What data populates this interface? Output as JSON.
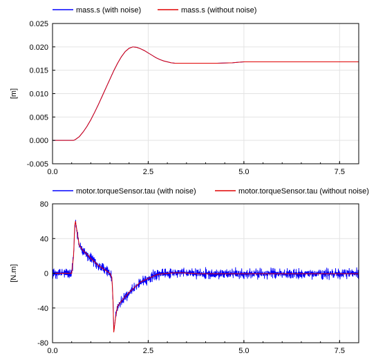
{
  "chart_data": [
    {
      "type": "line",
      "title": "",
      "xlabel": "",
      "ylabel": "[m]",
      "xlim": [
        0,
        8
      ],
      "ylim": [
        -0.005,
        0.025
      ],
      "xticks": [
        0.0,
        2.5,
        5.0,
        7.5
      ],
      "xtick_labels": [
        "0.0",
        "2.5",
        "5.0",
        "7.5"
      ],
      "yticks": [
        0.025,
        0.02,
        0.015,
        0.01,
        0.005,
        0.0,
        -0.005
      ],
      "ytick_labels": [
        "0.025",
        "0.020",
        "0.015",
        "0.010",
        "0.005",
        "0.000",
        "-0.005"
      ],
      "grid": true,
      "legend_placement": "top",
      "series": [
        {
          "name": "mass.s (with noise)",
          "color": "#0000ff",
          "x": [
            0,
            0.3,
            0.55,
            0.6,
            0.7,
            0.8,
            0.9,
            1.0,
            1.1,
            1.2,
            1.3,
            1.4,
            1.5,
            1.6,
            1.7,
            1.8,
            1.9,
            2.0,
            2.1,
            2.2,
            2.3,
            2.4,
            2.5,
            2.6,
            2.7,
            2.8,
            2.9,
            3.0,
            3.1,
            3.2,
            3.3,
            3.4,
            3.5,
            3.7,
            4.0,
            4.3,
            4.7,
            4.85,
            5.0,
            5.5,
            6.0,
            6.5,
            7.0,
            7.5,
            8.0
          ],
          "y": [
            0.0,
            0.0,
            0.0,
            0.0002,
            0.0008,
            0.0018,
            0.003,
            0.0044,
            0.006,
            0.0077,
            0.0095,
            0.0113,
            0.0131,
            0.0149,
            0.0165,
            0.0179,
            0.019,
            0.0197,
            0.02,
            0.0199,
            0.0196,
            0.0192,
            0.0187,
            0.0182,
            0.0177,
            0.0173,
            0.017,
            0.0168,
            0.0166,
            0.0165,
            0.0165,
            0.0165,
            0.0165,
            0.0165,
            0.0165,
            0.0165,
            0.0166,
            0.0167,
            0.0168,
            0.0168,
            0.0168,
            0.0168,
            0.0168,
            0.0168,
            0.0168
          ]
        },
        {
          "name": "mass.s (without noise)",
          "color": "#e00000",
          "x": [
            0,
            0.3,
            0.55,
            0.6,
            0.7,
            0.8,
            0.9,
            1.0,
            1.1,
            1.2,
            1.3,
            1.4,
            1.5,
            1.6,
            1.7,
            1.8,
            1.9,
            2.0,
            2.1,
            2.2,
            2.3,
            2.4,
            2.5,
            2.6,
            2.7,
            2.8,
            2.9,
            3.0,
            3.1,
            3.2,
            3.3,
            3.4,
            3.5,
            3.7,
            4.0,
            4.3,
            4.7,
            4.85,
            5.0,
            5.5,
            6.0,
            6.5,
            7.0,
            7.5,
            8.0
          ],
          "y": [
            0.0,
            0.0,
            0.0,
            0.0002,
            0.0008,
            0.0018,
            0.003,
            0.0044,
            0.006,
            0.0077,
            0.0095,
            0.0113,
            0.0131,
            0.0149,
            0.0165,
            0.0179,
            0.019,
            0.0197,
            0.02,
            0.0199,
            0.0196,
            0.0192,
            0.0187,
            0.0182,
            0.0177,
            0.0173,
            0.017,
            0.0168,
            0.0166,
            0.0165,
            0.0165,
            0.0165,
            0.0165,
            0.0165,
            0.0165,
            0.0165,
            0.0166,
            0.0167,
            0.0168,
            0.0168,
            0.0168,
            0.0168,
            0.0168,
            0.0168,
            0.0168
          ]
        }
      ]
    },
    {
      "type": "line",
      "title": "",
      "xlabel": "",
      "ylabel": "[N.m]",
      "xlim": [
        0,
        8
      ],
      "ylim": [
        -80,
        80
      ],
      "xticks": [
        0.0,
        2.5,
        5.0,
        7.5
      ],
      "xtick_labels": [
        "0.0",
        "2.5",
        "5.0",
        "7.5"
      ],
      "yticks": [
        80,
        40,
        0,
        -40,
        -80
      ],
      "ytick_labels": [
        "80",
        "40",
        "0",
        "-40",
        "-80"
      ],
      "grid": true,
      "legend_placement": "top",
      "noise_amplitude": 8,
      "series": [
        {
          "name": "motor.torqueSensor.tau (with noise)",
          "color": "#0000ff",
          "x": [
            0,
            0.5,
            0.55,
            0.58,
            0.6,
            0.65,
            0.7,
            0.8,
            0.9,
            1.0,
            1.1,
            1.2,
            1.3,
            1.4,
            1.5,
            1.55,
            1.58,
            1.6,
            1.65,
            1.7,
            1.8,
            1.9,
            2.0,
            2.1,
            2.2,
            2.3,
            2.4,
            2.5,
            2.6,
            2.7,
            2.8,
            2.9,
            3.0,
            3.2,
            3.4,
            3.6,
            3.8,
            4.0,
            4.5,
            5.0,
            5.5,
            6.0,
            6.5,
            7.0,
            7.5,
            8.0
          ],
          "y": [
            0,
            0,
            20,
            55,
            60,
            45,
            32,
            26,
            22,
            17,
            13,
            9,
            6,
            3,
            0,
            -5,
            -30,
            -68,
            -50,
            -38,
            -32,
            -27,
            -22,
            -18,
            -14,
            -10,
            -8,
            -6,
            -4,
            -2,
            -1,
            -0.5,
            0,
            0.5,
            0.5,
            0,
            -0.5,
            -0.5,
            -0.5,
            -0.5,
            -0.5,
            -0.5,
            -0.5,
            -0.5,
            -0.5,
            -0.5
          ]
        },
        {
          "name": "motor.torqueSensor.tau (without noise)",
          "color": "#e00000",
          "x": [
            0,
            0.5,
            0.55,
            0.58,
            0.6,
            0.65,
            0.7,
            0.8,
            0.9,
            1.0,
            1.1,
            1.2,
            1.3,
            1.4,
            1.5,
            1.55,
            1.58,
            1.6,
            1.65,
            1.7,
            1.8,
            1.9,
            2.0,
            2.1,
            2.2,
            2.3,
            2.4,
            2.5,
            2.6,
            2.7,
            2.8,
            2.9,
            3.0,
            3.2,
            3.4,
            3.6,
            3.8,
            4.0,
            4.5,
            5.0,
            5.5,
            6.0,
            6.5,
            7.0,
            7.5,
            8.0
          ],
          "y": [
            0,
            0,
            20,
            55,
            60,
            45,
            32,
            26,
            22,
            17,
            13,
            9,
            6,
            3,
            0,
            -5,
            -30,
            -68,
            -50,
            -38,
            -32,
            -27,
            -22,
            -18,
            -14,
            -10,
            -8,
            -6,
            -4,
            -2,
            -1,
            -0.5,
            0,
            0.5,
            0.5,
            0,
            -0.5,
            -0.5,
            -0.5,
            -0.5,
            -0.5,
            -0.5,
            -0.5,
            -0.5,
            -0.5,
            -0.5
          ]
        }
      ]
    }
  ]
}
